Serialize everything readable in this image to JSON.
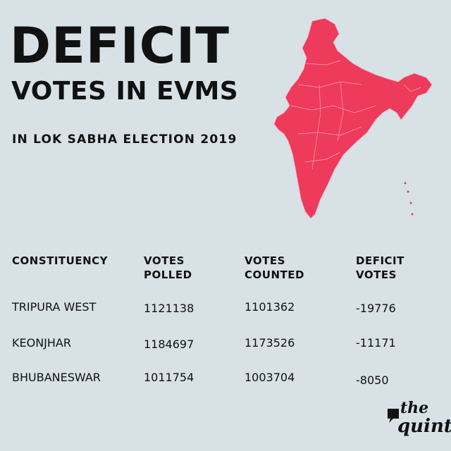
{
  "title": "DEFICIT",
  "subtitle_line": "VOTES IN EVMS",
  "caption": "IN LOK SABHA ELECTION 2019",
  "map_fill": "#ee3a5b",
  "table": {
    "headers": [
      {
        "line1": "CONSTITUENCY",
        "line2": ""
      },
      {
        "line1": "VOTES",
        "line2": "POLLED"
      },
      {
        "line1": "VOTES",
        "line2": "COUNTED"
      },
      {
        "line1": "DEFICIT",
        "line2": "VOTES"
      }
    ],
    "rows": [
      {
        "constituency": "TRIPURA WEST",
        "polled": "1121138",
        "counted": "1101362",
        "deficit": "-19776"
      },
      {
        "constituency": "KEONJHAR",
        "polled": "1184697",
        "counted": "1173526",
        "deficit": "-11171"
      },
      {
        "constituency": "BHUBANESWAR",
        "polled": "1011754",
        "counted": "1003704",
        "deficit": "-8050"
      }
    ]
  },
  "logo": {
    "the": "the",
    "quint": "quint"
  }
}
